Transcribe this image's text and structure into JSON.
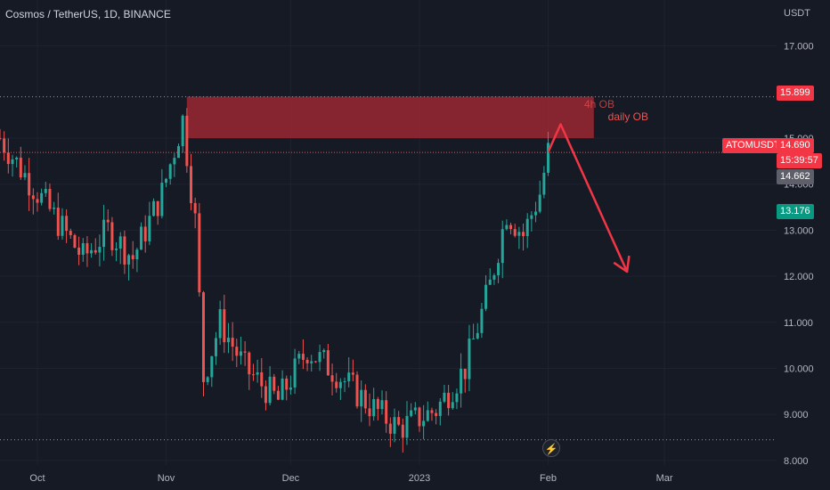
{
  "header": {
    "title": "Cosmos / TetherUS, 1D, BINANCE",
    "currency": "USDT"
  },
  "price_tags": {
    "zone_top": "15.899",
    "symbol": "ATOMUSDT",
    "last_price": "14.690",
    "countdown": "15:39:57",
    "grey_price": "14.662",
    "green_price": "13.176"
  },
  "annotation": {
    "zone_label_1": "4h OB",
    "zone_label_2": "daily OB"
  },
  "icons": {
    "bottom": "lightning-icon"
  },
  "colors": {
    "background": "#161a25",
    "up": "#26a69a",
    "down": "#ef5350",
    "zone": "#b22833",
    "arrow": "#f23645",
    "tag_red": "#f23645",
    "tag_grey": "#5d606b",
    "tag_green": "#089981"
  },
  "chart_data": {
    "type": "candlestick",
    "title": "Cosmos / TetherUS, 1D, BINANCE",
    "y_axis": {
      "unit": "USDT",
      "range": [
        7.9,
        18.0
      ],
      "ticks": [
        "8.000",
        "9.000",
        "10.000",
        "11.000",
        "12.000",
        "13.000",
        "14.000",
        "15.000",
        "17.000"
      ]
    },
    "x_axis": {
      "ticks": [
        "Oct",
        "Nov",
        "Dec",
        "2023",
        "Feb",
        "Mar"
      ],
      "range": [
        "2022-09-22",
        "2023-03-28"
      ]
    },
    "horizontal_lines": [
      15.899,
      14.69,
      8.45
    ],
    "zone": {
      "from": "2022-11-06",
      "to": "2023-02-12",
      "top": 15.9,
      "bottom": 15.0,
      "labels": [
        "4h OB",
        "daily OB"
      ]
    },
    "projection_arrow": [
      [
        "2023-02-01",
        14.7
      ],
      [
        "2023-02-04",
        15.3
      ],
      [
        "2023-02-20",
        12.1
      ]
    ],
    "trend_description": "Rally from ~13.0 to ~15.8 early Nov, drop to ~9.7, range 9.2–10.5 through Dec, low ~8.5 late Dec, rally to ~14.7 by Feb",
    "waypoints": [
      [
        "2022-09-22",
        15.0
      ],
      [
        "2022-09-28",
        14.2
      ],
      [
        "2022-10-05",
        13.3
      ],
      [
        "2022-10-12",
        12.4
      ],
      [
        "2022-10-18",
        13.0
      ],
      [
        "2022-10-24",
        12.4
      ],
      [
        "2022-10-31",
        13.8
      ],
      [
        "2022-11-05",
        15.4
      ],
      [
        "2022-11-08",
        13.2
      ],
      [
        "2022-11-10",
        9.8
      ],
      [
        "2022-11-14",
        11.0
      ],
      [
        "2022-11-20",
        10.0
      ],
      [
        "2022-11-28",
        9.3
      ],
      [
        "2022-12-05",
        10.4
      ],
      [
        "2022-12-12",
        9.9
      ],
      [
        "2022-12-20",
        9.2
      ],
      [
        "2022-12-27",
        8.7
      ],
      [
        "2023-01-05",
        9.1
      ],
      [
        "2023-01-12",
        10.0
      ],
      [
        "2023-01-18",
        11.8
      ],
      [
        "2023-01-22",
        13.4
      ],
      [
        "2023-01-26",
        12.9
      ],
      [
        "2023-01-30",
        13.8
      ],
      [
        "2023-02-01",
        14.7
      ]
    ]
  }
}
